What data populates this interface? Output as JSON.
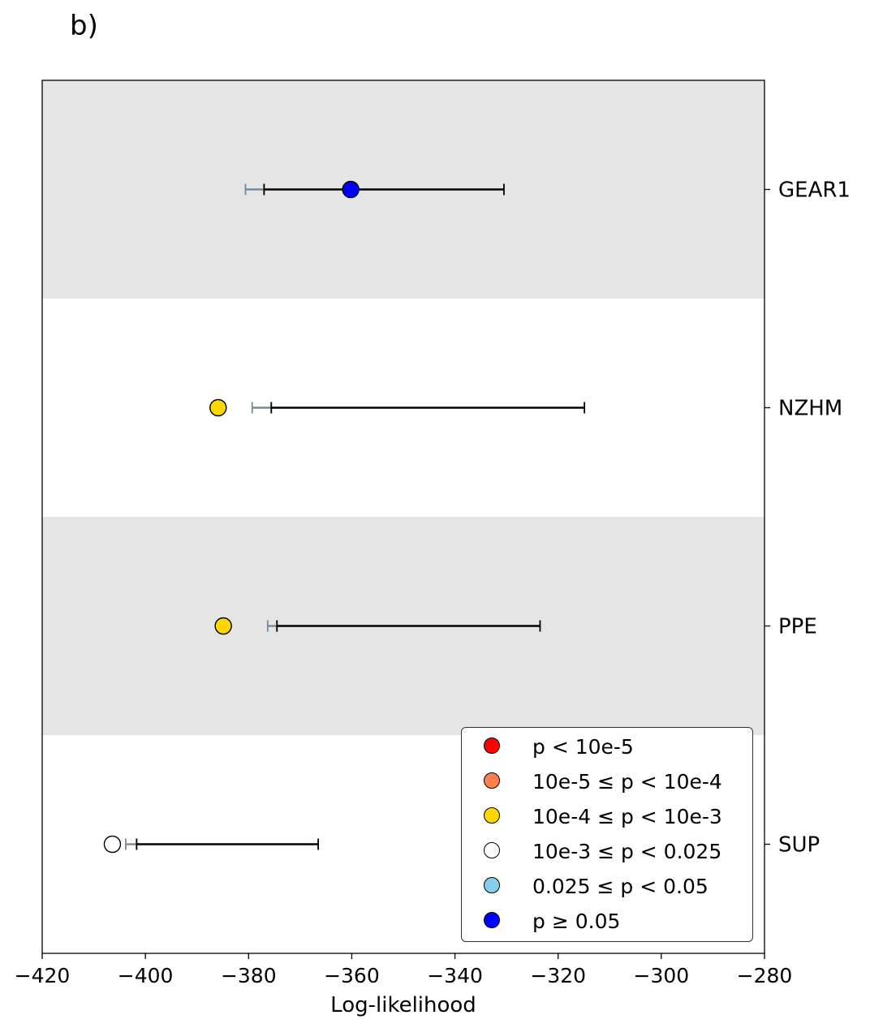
{
  "panel_label": "b)",
  "chart_data": {
    "type": "scatter",
    "title": "",
    "xlabel": "Log-likelihood",
    "ylabel": "",
    "xlim": [
      -420,
      -280
    ],
    "xticks": [
      -420,
      -400,
      -380,
      -360,
      -340,
      -320,
      -300,
      -280
    ],
    "xtick_labels": [
      "−420",
      "−400",
      "−380",
      "−360",
      "−340",
      "−320",
      "−300",
      "−280"
    ],
    "categories": [
      "GEAR1",
      "NZHM",
      "PPE",
      "SUP"
    ],
    "row_shading": [
      "#e5e5e5",
      "#ffffff",
      "#e5e5e5",
      "#ffffff"
    ],
    "grid": false,
    "legend_position": "lower-right",
    "points": [
      {
        "model": "GEAR1",
        "observed": -360.2,
        "color": "#0000ff",
        "inner_interval": [
          -380.6,
          -377.0
        ],
        "outer_interval": [
          -377.0,
          -330.5
        ]
      },
      {
        "model": "NZHM",
        "observed": -385.9,
        "color": "#ffd700",
        "inner_interval": [
          -379.3,
          -375.6
        ],
        "outer_interval": [
          -375.6,
          -314.9
        ]
      },
      {
        "model": "PPE",
        "observed": -384.9,
        "color": "#ffd700",
        "inner_interval": [
          -376.3,
          -374.5
        ],
        "outer_interval": [
          -374.5,
          -323.5
        ]
      },
      {
        "model": "SUP",
        "observed": -406.4,
        "color": "#ffffff",
        "inner_interval": [
          -403.8,
          -401.7
        ],
        "outer_interval": [
          -401.7,
          -366.5
        ]
      }
    ],
    "interval_colors": {
      "inner": "#778899",
      "outer": "#000000"
    },
    "legend": [
      {
        "label": "p < 10e-5",
        "color": "#ff0000"
      },
      {
        "label": "10e-5 ≤ p < 10e-4",
        "color": "#ff7f50"
      },
      {
        "label": "10e-4 ≤ p < 10e-3",
        "color": "#ffd700"
      },
      {
        "label": "10e-3 ≤ p < 0.025",
        "color": "#ffffff"
      },
      {
        "label": "0.025 ≤ p < 0.05",
        "color": "#87ceeb"
      },
      {
        "label": "p ≥ 0.05",
        "color": "#0000ff"
      }
    ]
  }
}
